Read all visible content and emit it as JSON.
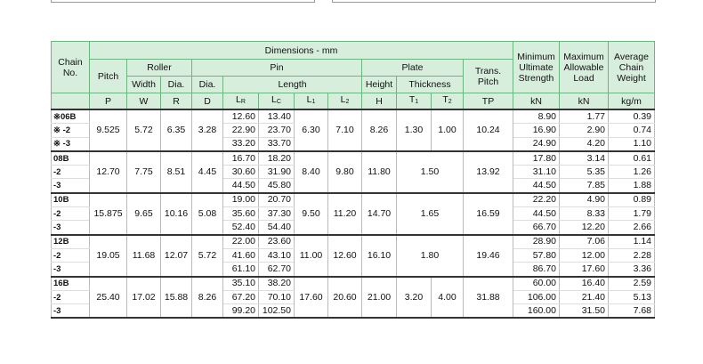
{
  "header": {
    "chain_no": "Chain No.",
    "dimensions": "Dimensions - mm",
    "pitch": "Pitch",
    "roller": "Roller",
    "pin": "Pin",
    "plate": "Plate",
    "trans_pitch": "Trans. Pitch",
    "strength": "Minimum Ultimate Strength",
    "load": "Maximum Allowable Load",
    "weight": "Average Chain Weight",
    "width": "Width",
    "roller_dia": "Dia.",
    "pin_dia": "Dia.",
    "length": "Length",
    "height": "Height",
    "thickness": "Thickness"
  },
  "symbols": [
    null,
    "P",
    "W",
    "R",
    "D",
    {
      "main": "L",
      "sub": "R"
    },
    {
      "main": "L",
      "sub": "C"
    },
    {
      "main": "L",
      "sub": "1"
    },
    {
      "main": "L",
      "sub": "2"
    },
    "H",
    {
      "main": "T",
      "sub": "1"
    },
    {
      "main": "T",
      "sub": "2"
    },
    "TP",
    "kN",
    "kN",
    "kg/m"
  ],
  "groups": [
    {
      "chains": [
        "※06B",
        "※ -2",
        "※ -3"
      ],
      "pitch": "9.525",
      "width": "5.72",
      "roller_dia": "6.35",
      "pin_dia": "3.28",
      "lr": [
        "12.60",
        "22.90",
        "33.20"
      ],
      "lc": [
        "13.40",
        "23.70",
        "33.70"
      ],
      "l1": "6.30",
      "l2": "7.10",
      "height": "8.26",
      "t1": "1.30",
      "t2": "1.00",
      "trans_pitch": "10.24",
      "strength": [
        "8.90",
        "16.90",
        "24.90"
      ],
      "load": [
        "1.77",
        "2.90",
        "4.20"
      ],
      "weight": [
        "0.39",
        "0.74",
        "1.10"
      ]
    },
    {
      "chains": [
        "08B",
        "-2",
        "-3"
      ],
      "pitch": "12.70",
      "width": "7.75",
      "roller_dia": "8.51",
      "pin_dia": "4.45",
      "lr": [
        "16.70",
        "30.60",
        "44.50"
      ],
      "lc": [
        "18.20",
        "31.90",
        "45.80"
      ],
      "l1": "8.40",
      "l2": "9.80",
      "height": "11.80",
      "thickness": "1.50",
      "trans_pitch": "13.92",
      "strength": [
        "17.80",
        "31.10",
        "44.50"
      ],
      "load": [
        "3.14",
        "5.35",
        "7.85"
      ],
      "weight": [
        "0.61",
        "1.26",
        "1.88"
      ]
    },
    {
      "chains": [
        "10B",
        "-2",
        "-3"
      ],
      "pitch": "15.875",
      "width": "9.65",
      "roller_dia": "10.16",
      "pin_dia": "5.08",
      "lr": [
        "19.00",
        "35.60",
        "52.40"
      ],
      "lc": [
        "20.70",
        "37.30",
        "54.40"
      ],
      "l1": "9.50",
      "l2": "11.20",
      "height": "14.70",
      "thickness": "1.65",
      "trans_pitch": "16.59",
      "strength": [
        "22.20",
        "44.50",
        "66.70"
      ],
      "load": [
        "4.90",
        "8.33",
        "12.20"
      ],
      "weight": [
        "0.89",
        "1.79",
        "2.66"
      ]
    },
    {
      "chains": [
        "12B",
        "-2",
        "-3"
      ],
      "pitch": "19.05",
      "width": "11.68",
      "roller_dia": "12.07",
      "pin_dia": "5.72",
      "lr": [
        "22.00",
        "41.60",
        "61.10"
      ],
      "lc": [
        "23.60",
        "43.10",
        "62.70"
      ],
      "l1": "11.00",
      "l2": "12.60",
      "height": "16.10",
      "thickness": "1.80",
      "trans_pitch": "19.46",
      "strength": [
        "28.90",
        "57.80",
        "86.70"
      ],
      "load": [
        "7.06",
        "12.00",
        "17.60"
      ],
      "weight": [
        "1.14",
        "2.28",
        "3.36"
      ]
    },
    {
      "chains": [
        "16B",
        "-2",
        "-3"
      ],
      "pitch": "25.40",
      "width": "17.02",
      "roller_dia": "15.88",
      "pin_dia": "8.26",
      "lr": [
        "35.10",
        "67.20",
        "99.20"
      ],
      "lc": [
        "38.20",
        "70.10",
        "102.50"
      ],
      "l1": "17.60",
      "l2": "20.60",
      "height": "21.00",
      "t1": "3.20",
      "t2": "4.00",
      "trans_pitch": "31.88",
      "strength": [
        "60.00",
        "106.00",
        "160.00"
      ],
      "load": [
        "16.40",
        "21.40",
        "31.50"
      ],
      "weight": [
        "2.59",
        "5.13",
        "7.68"
      ]
    }
  ]
}
